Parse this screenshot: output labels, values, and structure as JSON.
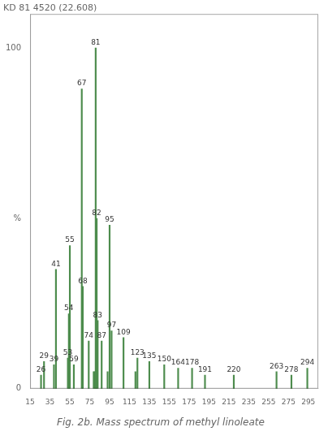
{
  "chart_data": {
    "type": "bar",
    "title": "Fig. 2b. Mass spectrum of methyl linoleate",
    "subtitle": "KD 81 4520 (22.608)",
    "x": [
      26,
      29,
      39,
      41,
      53,
      54,
      55,
      59,
      67,
      68,
      74,
      79,
      80,
      81,
      82,
      83,
      87,
      93,
      95,
      97,
      109,
      121,
      123,
      135,
      150,
      164,
      178,
      191,
      220,
      263,
      278,
      294
    ],
    "values": [
      4,
      8,
      7,
      35,
      9,
      22,
      42,
      7,
      88,
      30,
      14,
      5,
      5,
      100,
      50,
      20,
      14,
      5,
      48,
      17,
      15,
      5,
      9,
      8,
      7,
      6,
      6,
      4,
      4,
      5,
      4,
      6
    ],
    "color": "#4d8c4d",
    "xlim": [
      15,
      305
    ],
    "xticks": [
      15,
      35,
      55,
      75,
      95,
      115,
      135,
      155,
      175,
      195,
      215,
      235,
      255,
      275,
      295
    ],
    "ylim": [
      0,
      110
    ],
    "yticks": [
      0,
      {
        "value": 50,
        "label": "%"
      },
      100
    ],
    "grid": false,
    "annotations": [
      {
        "x": 26,
        "text": "26"
      },
      {
        "x": 29,
        "text": "29"
      },
      {
        "x": 39,
        "text": "39"
      },
      {
        "x": 41,
        "text": "41"
      },
      {
        "x": 53,
        "text": "53"
      },
      {
        "x": 54,
        "text": "54"
      },
      {
        "x": 55,
        "text": "55"
      },
      {
        "x": 59,
        "text": "59"
      },
      {
        "x": 67,
        "text": "67"
      },
      {
        "x": 68,
        "text": "68"
      },
      {
        "x": 74,
        "text": "74"
      },
      {
        "x": 81,
        "text": "81"
      },
      {
        "x": 82,
        "text": "82"
      },
      {
        "x": 83,
        "text": "83"
      },
      {
        "x": 87,
        "text": "87"
      },
      {
        "x": 95,
        "text": "95"
      },
      {
        "x": 97,
        "text": "97"
      },
      {
        "x": 109,
        "text": "109"
      },
      {
        "x": 123,
        "text": "123"
      },
      {
        "x": 135,
        "text": "135"
      },
      {
        "x": 150,
        "text": "150"
      },
      {
        "x": 164,
        "text": "164"
      },
      {
        "x": 178,
        "text": "178"
      },
      {
        "x": 191,
        "text": "191"
      },
      {
        "x": 220,
        "text": "220"
      },
      {
        "x": 263,
        "text": "263"
      },
      {
        "x": 278,
        "text": "278"
      },
      {
        "x": 294,
        "text": "294"
      }
    ]
  }
}
